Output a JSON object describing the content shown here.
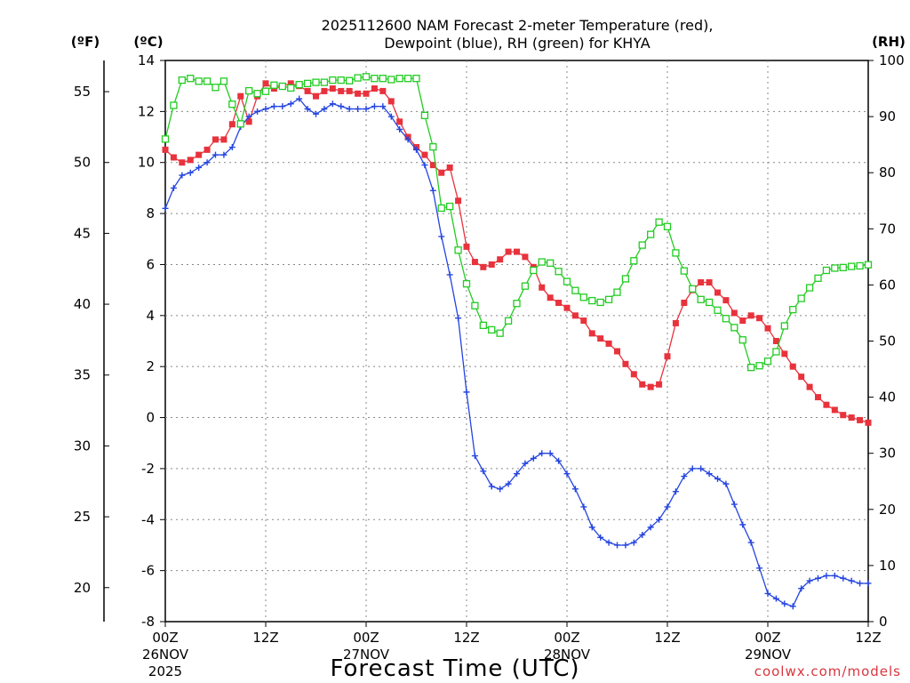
{
  "chart_data": {
    "type": "line",
    "title": "2025112600 NAM Forecast 2-meter Temperature (red),",
    "subtitle": "Dewpoint (blue), RH (green) for KHYA",
    "xlabel": "Forecast Time (UTC)",
    "credit": "coolwx.com/models",
    "units": {
      "fahrenheit": "(ºF)",
      "celsius": "(ºC)",
      "rh": "(RH)"
    },
    "x_range_hours": [
      0,
      84
    ],
    "x_ticks": [
      {
        "h": 0,
        "label": "00Z",
        "date": "26NOV",
        "year": "2025"
      },
      {
        "h": 12,
        "label": "12Z",
        "date": "",
        "year": ""
      },
      {
        "h": 24,
        "label": "00Z",
        "date": "27NOV",
        "year": ""
      },
      {
        "h": 36,
        "label": "12Z",
        "date": "",
        "year": ""
      },
      {
        "h": 48,
        "label": "00Z",
        "date": "28NOV",
        "year": ""
      },
      {
        "h": 60,
        "label": "12Z",
        "date": "",
        "year": ""
      },
      {
        "h": 72,
        "label": "00Z",
        "date": "29NOV",
        "year": ""
      },
      {
        "h": 84,
        "label": "12Z",
        "date": "",
        "year": ""
      }
    ],
    "ylim_c": [
      -8,
      14
    ],
    "yticks_c": [
      "-8",
      "-6",
      "-4",
      "-2",
      "0",
      "2",
      "4",
      "6",
      "8",
      "10",
      "12",
      "14"
    ],
    "yticks_f": [
      "20",
      "25",
      "30",
      "35",
      "40",
      "45",
      "50",
      "55"
    ],
    "ylim_rh": [
      0,
      100
    ],
    "yticks_rh": [
      "0",
      "10",
      "20",
      "30",
      "40",
      "50",
      "60",
      "70",
      "80",
      "90",
      "100"
    ],
    "series": [
      {
        "name": "Temperature",
        "color": "#e8323c",
        "marker": "square-filled",
        "x": [
          0,
          1,
          2,
          3,
          4,
          5,
          6,
          7,
          8,
          9,
          10,
          11,
          12,
          13,
          14,
          15,
          16,
          17,
          18,
          19,
          20,
          21,
          22,
          23,
          24,
          25,
          26,
          27,
          28,
          29,
          30,
          31,
          32,
          33,
          34,
          35,
          36,
          37,
          38,
          39,
          40,
          41,
          42,
          43,
          44,
          45,
          46,
          47,
          48,
          49,
          50,
          51,
          52,
          53,
          54,
          55,
          56,
          57,
          58,
          59,
          60,
          61,
          62,
          63,
          64,
          65,
          66,
          67,
          68,
          69,
          70,
          71,
          72,
          73,
          74,
          75,
          76,
          77,
          78,
          79,
          80,
          81,
          82,
          83,
          84
        ],
        "values": [
          10.5,
          10.2,
          10.0,
          10.1,
          10.3,
          10.5,
          10.9,
          10.9,
          11.5,
          12.6,
          11.6,
          12.6,
          13.1,
          12.9,
          13.0,
          13.1,
          13.0,
          12.8,
          12.6,
          12.8,
          12.9,
          12.8,
          12.8,
          12.7,
          12.7,
          12.9,
          12.8,
          12.4,
          11.6,
          11.0,
          10.6,
          10.3,
          9.9,
          9.6,
          9.8,
          8.5,
          6.7,
          6.1,
          5.9,
          6.0,
          6.2,
          6.5,
          6.5,
          6.3,
          5.9,
          5.1,
          4.7,
          4.5,
          4.3,
          4.0,
          3.8,
          3.3,
          3.1,
          2.9,
          2.6,
          2.1,
          1.7,
          1.3,
          1.2,
          1.3,
          2.4,
          3.7,
          4.5,
          5.0,
          5.3,
          5.3,
          4.9,
          4.6,
          4.1,
          3.8,
          4.0,
          3.9,
          3.5,
          3.0,
          2.5,
          2.0,
          1.6,
          1.2,
          0.8,
          0.5,
          0.3,
          0.1,
          0,
          -0.1,
          -0.2
        ]
      },
      {
        "name": "Dewpoint",
        "color": "#2444e0",
        "marker": "plus",
        "x": [
          0,
          1,
          2,
          3,
          4,
          5,
          6,
          7,
          8,
          9,
          10,
          11,
          12,
          13,
          14,
          15,
          16,
          17,
          18,
          19,
          20,
          21,
          22,
          23,
          24,
          25,
          26,
          27,
          28,
          29,
          30,
          31,
          32,
          33,
          34,
          35,
          36,
          37,
          38,
          39,
          40,
          41,
          42,
          43,
          44,
          45,
          46,
          47,
          48,
          49,
          50,
          51,
          52,
          53,
          54,
          55,
          56,
          57,
          58,
          59,
          60,
          61,
          62,
          63,
          64,
          65,
          66,
          67,
          68,
          69,
          70,
          71,
          72,
          73,
          74,
          75,
          76,
          77,
          78,
          79,
          80,
          81,
          82,
          83,
          84
        ],
        "values": [
          8.2,
          9.0,
          9.5,
          9.6,
          9.8,
          10.0,
          10.3,
          10.3,
          10.6,
          11.4,
          11.8,
          12.0,
          12.1,
          12.2,
          12.2,
          12.3,
          12.5,
          12.1,
          11.9,
          12.1,
          12.3,
          12.2,
          12.1,
          12.1,
          12.1,
          12.2,
          12.2,
          11.8,
          11.3,
          10.9,
          10.5,
          9.9,
          8.9,
          7.1,
          5.6,
          3.9,
          1.0,
          -1.5,
          -2.1,
          -2.7,
          -2.8,
          -2.6,
          -2.2,
          -1.8,
          -1.6,
          -1.4,
          -1.4,
          -1.7,
          -2.2,
          -2.8,
          -3.5,
          -4.3,
          -4.7,
          -4.9,
          -5.0,
          -5.0,
          -4.9,
          -4.6,
          -4.3,
          -4.0,
          -3.5,
          -2.9,
          -2.3,
          -2.0,
          -2.0,
          -2.2,
          -2.4,
          -2.6,
          -3.4,
          -4.2,
          -4.9,
          -5.9,
          -6.9,
          -7.1,
          -7.3,
          -7.4,
          -6.7,
          -6.4,
          -6.3,
          -6.2,
          -6.2,
          -6.3,
          -6.4,
          -6.5,
          -6.5
        ]
      },
      {
        "name": "RH",
        "color": "#22cc22",
        "marker": "square-open",
        "axis": "rh",
        "x": [
          0,
          1,
          2,
          3,
          4,
          5,
          6,
          7,
          8,
          9,
          10,
          11,
          12,
          13,
          14,
          15,
          16,
          17,
          18,
          19,
          20,
          21,
          22,
          23,
          24,
          25,
          26,
          27,
          28,
          29,
          30,
          31,
          32,
          33,
          34,
          35,
          36,
          37,
          38,
          39,
          40,
          41,
          42,
          43,
          44,
          45,
          46,
          47,
          48,
          49,
          50,
          51,
          52,
          53,
          54,
          55,
          56,
          57,
          58,
          59,
          60,
          61,
          62,
          63,
          64,
          65,
          66,
          67,
          68,
          69,
          70,
          71,
          72,
          73,
          74,
          75,
          76,
          77,
          78,
          79,
          80,
          81,
          82,
          83,
          84
        ],
        "values": [
          86,
          92,
          96.5,
          96.8,
          96.3,
          96.3,
          95.2,
          96.3,
          92.2,
          88.7,
          94.6,
          94.1,
          94.5,
          95.6,
          95.4,
          95.1,
          95.7,
          95.9,
          96.1,
          96.1,
          96.5,
          96.5,
          96.4,
          96.9,
          97.1,
          96.8,
          96.8,
          96.6,
          96.8,
          96.8,
          96.8,
          90.2,
          84.6,
          73.7,
          74.0,
          66.2,
          60.2,
          56.3,
          52.8,
          52.0,
          51.4,
          53.6,
          56.7,
          59.8,
          62.6,
          64.1,
          63.9,
          62.4,
          60.6,
          59.0,
          57.8,
          57.2,
          56.9,
          57.4,
          58.7,
          61.1,
          64.3,
          67.1,
          69.0,
          71.2,
          70.4,
          65.7,
          62.5,
          59.3,
          57.4,
          56.9,
          55.5,
          54.0,
          52.4,
          50.2,
          45.3,
          45.6,
          46.4,
          48.1,
          52.7,
          55.6,
          57.6,
          59.5,
          61.2,
          62.6,
          63.0,
          63.1,
          63.3,
          63.4,
          63.6
        ]
      }
    ]
  }
}
